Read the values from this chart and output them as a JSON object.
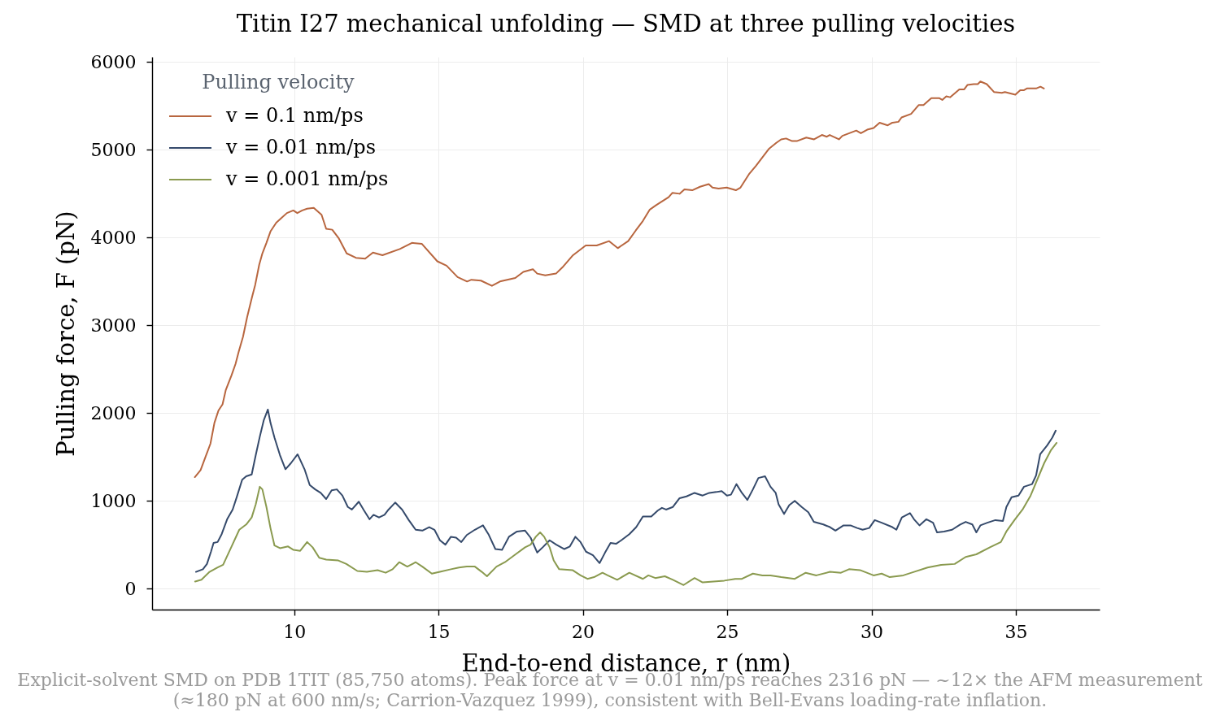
{
  "chart_data": {
    "type": "line",
    "title": "Titin I27 mechanical unfolding — SMD at three pulling velocities",
    "xlabel": "End-to-end distance, r (nm)",
    "ylabel": "Pulling force, F (pN)",
    "legend_title": "Pulling velocity",
    "legend": "top left",
    "grid": true,
    "xlim": [
      5.08,
      37.9
    ],
    "ylim": [
      -240,
      6060
    ],
    "xticks": [
      10,
      15,
      20,
      25,
      30,
      35
    ],
    "yticks": [
      0,
      1000,
      2000,
      3000,
      4000,
      5000,
      6000
    ],
    "annotations": [
      "Explicit-solvent SMD on PDB 1TIT (85,750 atoms). Peak force at v = 0.01 nm/ps reaches 2316 pN — ~12× the AFM measurement (≈180 pN at 600 nm/s; Carrion-Vazquez 1999), consistent with Bell-Evans loading-rate inflation."
    ],
    "series": [
      {
        "name": "v = 0.1 nm/ps",
        "color": "#b8663f",
        "x": [
          6.56,
          6.76,
          6.93,
          7.1,
          7.24,
          7.38,
          7.52,
          7.63,
          7.83,
          7.97,
          8.08,
          8.23,
          8.37,
          8.54,
          8.65,
          8.79,
          8.9,
          9.04,
          9.18,
          9.38,
          9.55,
          9.75,
          9.97,
          10.11,
          10.28,
          10.45,
          10.68,
          10.95,
          11.11,
          11.32,
          11.55,
          11.82,
          12.14,
          12.46,
          12.73,
          13.06,
          13.66,
          14.08,
          14.42,
          14.96,
          15.28,
          15.66,
          15.99,
          16.14,
          16.47,
          16.85,
          17.13,
          17.66,
          17.94,
          18.27,
          18.42,
          18.7,
          19.07,
          19.29,
          19.66,
          20.1,
          20.48,
          20.91,
          21.21,
          21.57,
          21.83,
          22.08,
          22.32,
          22.54,
          22.97,
          23.1,
          23.35,
          23.52,
          23.79,
          24.06,
          24.36,
          24.49,
          24.7,
          24.98,
          25.3,
          25.46,
          25.77,
          26.0,
          26.23,
          26.44,
          26.7,
          26.87,
          27.04,
          27.25,
          27.41,
          27.74,
          28.01,
          28.28,
          28.45,
          28.55,
          28.87,
          28.99,
          29.47,
          29.63,
          29.85,
          30.07,
          30.28,
          30.56,
          30.72,
          30.93,
          31.04,
          31.37,
          31.63,
          31.8,
          32.07,
          32.34,
          32.45,
          32.59,
          32.72,
          33.04,
          33.21,
          33.32,
          33.54,
          33.68,
          33.77,
          33.99,
          34.24,
          34.51,
          34.62,
          34.98,
          35.15,
          35.27,
          35.38,
          35.7,
          35.85,
          35.97
        ],
        "values": [
          1270,
          1350,
          1500,
          1650,
          1890,
          2030,
          2100,
          2260,
          2430,
          2560,
          2700,
          2870,
          3090,
          3320,
          3460,
          3690,
          3820,
          3940,
          4070,
          4170,
          4220,
          4280,
          4310,
          4280,
          4310,
          4330,
          4340,
          4260,
          4100,
          4090,
          3990,
          3820,
          3770,
          3760,
          3830,
          3800,
          3870,
          3940,
          3930,
          3730,
          3680,
          3550,
          3500,
          3520,
          3510,
          3450,
          3500,
          3540,
          3610,
          3640,
          3590,
          3570,
          3590,
          3660,
          3800,
          3910,
          3910,
          3960,
          3880,
          3960,
          4080,
          4190,
          4320,
          4370,
          4460,
          4510,
          4500,
          4550,
          4540,
          4580,
          4610,
          4570,
          4560,
          4570,
          4540,
          4570,
          4730,
          4820,
          4920,
          5010,
          5080,
          5120,
          5130,
          5100,
          5100,
          5140,
          5120,
          5170,
          5150,
          5170,
          5120,
          5160,
          5220,
          5190,
          5230,
          5250,
          5310,
          5280,
          5310,
          5320,
          5370,
          5410,
          5510,
          5510,
          5590,
          5590,
          5570,
          5610,
          5600,
          5690,
          5690,
          5740,
          5750,
          5750,
          5780,
          5750,
          5660,
          5650,
          5660,
          5630,
          5680,
          5680,
          5700,
          5700,
          5720,
          5700
        ]
      },
      {
        "name": "v = 0.01 nm/ps",
        "color": "#354a6b",
        "x": [
          6.6,
          6.84,
          6.98,
          7.12,
          7.21,
          7.35,
          7.49,
          7.68,
          7.87,
          8.01,
          8.2,
          8.34,
          8.53,
          8.67,
          8.81,
          8.95,
          9.09,
          9.18,
          9.32,
          9.51,
          9.7,
          9.89,
          10.12,
          10.36,
          10.54,
          10.73,
          10.92,
          11.11,
          11.3,
          11.48,
          11.67,
          11.86,
          12.0,
          12.24,
          12.42,
          12.61,
          12.75,
          12.94,
          13.13,
          13.27,
          13.5,
          13.74,
          13.97,
          14.21,
          14.44,
          14.68,
          14.86,
          15.05,
          15.24,
          15.43,
          15.61,
          15.79,
          15.98,
          16.26,
          16.54,
          16.73,
          16.97,
          17.2,
          17.44,
          17.72,
          18.0,
          18.19,
          18.42,
          18.61,
          18.85,
          19.08,
          19.36,
          19.55,
          19.74,
          19.92,
          20.11,
          20.35,
          20.58,
          20.77,
          20.96,
          21.15,
          21.33,
          21.61,
          21.85,
          22.08,
          22.37,
          22.6,
          22.74,
          22.88,
          23.12,
          23.35,
          23.59,
          23.87,
          24.15,
          24.38,
          24.62,
          24.81,
          24.99,
          25.13,
          25.32,
          25.51,
          25.7,
          25.89,
          26.08,
          26.31,
          26.5,
          26.68,
          26.78,
          26.97,
          27.15,
          27.34,
          27.58,
          27.81,
          28.0,
          28.33,
          28.56,
          28.75,
          29.03,
          29.27,
          29.5,
          29.69,
          29.92,
          30.11,
          30.35,
          30.72,
          30.86,
          31.05,
          31.33,
          31.47,
          31.66,
          31.9,
          32.13,
          32.27,
          32.51,
          32.79,
          33.07,
          33.26,
          33.49,
          33.63,
          33.77,
          34.01,
          34.29,
          34.55,
          34.67,
          34.85,
          35.09,
          35.28,
          35.56,
          35.7,
          35.84,
          36.08,
          36.26,
          36.38
        ],
        "values": [
          190,
          220,
          280,
          420,
          520,
          530,
          620,
          790,
          900,
          1040,
          1240,
          1280,
          1300,
          1520,
          1730,
          1920,
          2040,
          1890,
          1720,
          1520,
          1360,
          1430,
          1530,
          1360,
          1180,
          1130,
          1090,
          1020,
          1120,
          1130,
          1060,
          930,
          900,
          990,
          890,
          790,
          840,
          810,
          840,
          900,
          980,
          900,
          780,
          670,
          660,
          700,
          670,
          550,
          500,
          590,
          580,
          530,
          610,
          670,
          720,
          620,
          450,
          440,
          590,
          650,
          660,
          580,
          410,
          470,
          550,
          500,
          450,
          480,
          590,
          530,
          420,
          380,
          290,
          410,
          520,
          510,
          550,
          620,
          700,
          820,
          820,
          890,
          920,
          900,
          930,
          1030,
          1050,
          1090,
          1060,
          1090,
          1100,
          1110,
          1060,
          1070,
          1190,
          1090,
          1010,
          1130,
          1260,
          1280,
          1160,
          1090,
          960,
          850,
          950,
          1000,
          930,
          870,
          760,
          730,
          700,
          660,
          720,
          720,
          690,
          670,
          690,
          780,
          750,
          700,
          670,
          810,
          860,
          790,
          720,
          790,
          750,
          640,
          650,
          670,
          730,
          760,
          730,
          640,
          720,
          750,
          780,
          770,
          930,
          1040,
          1060,
          1160,
          1190,
          1290,
          1530,
          1630,
          1720,
          1800
        ]
      },
      {
        "name": "v = 0.001 nm/ps",
        "color": "#8a9a4f",
        "x": [
          6.57,
          6.79,
          7.07,
          7.35,
          7.54,
          7.82,
          8.1,
          8.34,
          8.53,
          8.67,
          8.81,
          8.9,
          9.04,
          9.18,
          9.32,
          9.51,
          9.79,
          9.98,
          10.21,
          10.45,
          10.64,
          10.87,
          11.11,
          11.53,
          11.81,
          12.19,
          12.52,
          12.89,
          13.17,
          13.41,
          13.64,
          13.92,
          14.21,
          14.44,
          14.77,
          15.05,
          15.43,
          15.71,
          15.98,
          16.26,
          16.5,
          16.68,
          17.01,
          17.3,
          17.67,
          18.0,
          18.19,
          18.37,
          18.52,
          18.66,
          18.85,
          18.99,
          19.18,
          19.64,
          19.92,
          20.16,
          20.39,
          20.68,
          20.86,
          21.19,
          21.61,
          22.08,
          22.27,
          22.51,
          22.84,
          23.12,
          23.49,
          23.87,
          24.15,
          24.52,
          24.9,
          25.28,
          25.51,
          25.89,
          26.22,
          26.5,
          26.87,
          27.34,
          27.72,
          28.09,
          28.56,
          28.94,
          29.22,
          29.6,
          30.07,
          30.35,
          30.63,
          31.1,
          31.47,
          31.94,
          32.41,
          32.88,
          33.26,
          33.63,
          34.1,
          34.48,
          34.67,
          34.95,
          35.23,
          35.51,
          35.7,
          35.98,
          36.22,
          36.41
        ],
        "values": [
          80,
          100,
          190,
          240,
          270,
          470,
          670,
          730,
          810,
          960,
          1160,
          1130,
          930,
          690,
          490,
          460,
          480,
          440,
          430,
          530,
          470,
          350,
          330,
          320,
          280,
          200,
          190,
          210,
          180,
          220,
          300,
          250,
          300,
          250,
          170,
          190,
          220,
          240,
          250,
          250,
          190,
          140,
          250,
          300,
          390,
          470,
          500,
          590,
          640,
          590,
          470,
          320,
          220,
          210,
          150,
          110,
          130,
          180,
          150,
          100,
          180,
          110,
          150,
          120,
          140,
          100,
          40,
          120,
          70,
          80,
          90,
          110,
          110,
          170,
          150,
          150,
          130,
          110,
          180,
          150,
          190,
          180,
          220,
          210,
          150,
          170,
          130,
          150,
          190,
          240,
          270,
          280,
          360,
          390,
          470,
          530,
          650,
          780,
          900,
          1060,
          1210,
          1430,
          1580,
          1660
        ]
      }
    ]
  }
}
